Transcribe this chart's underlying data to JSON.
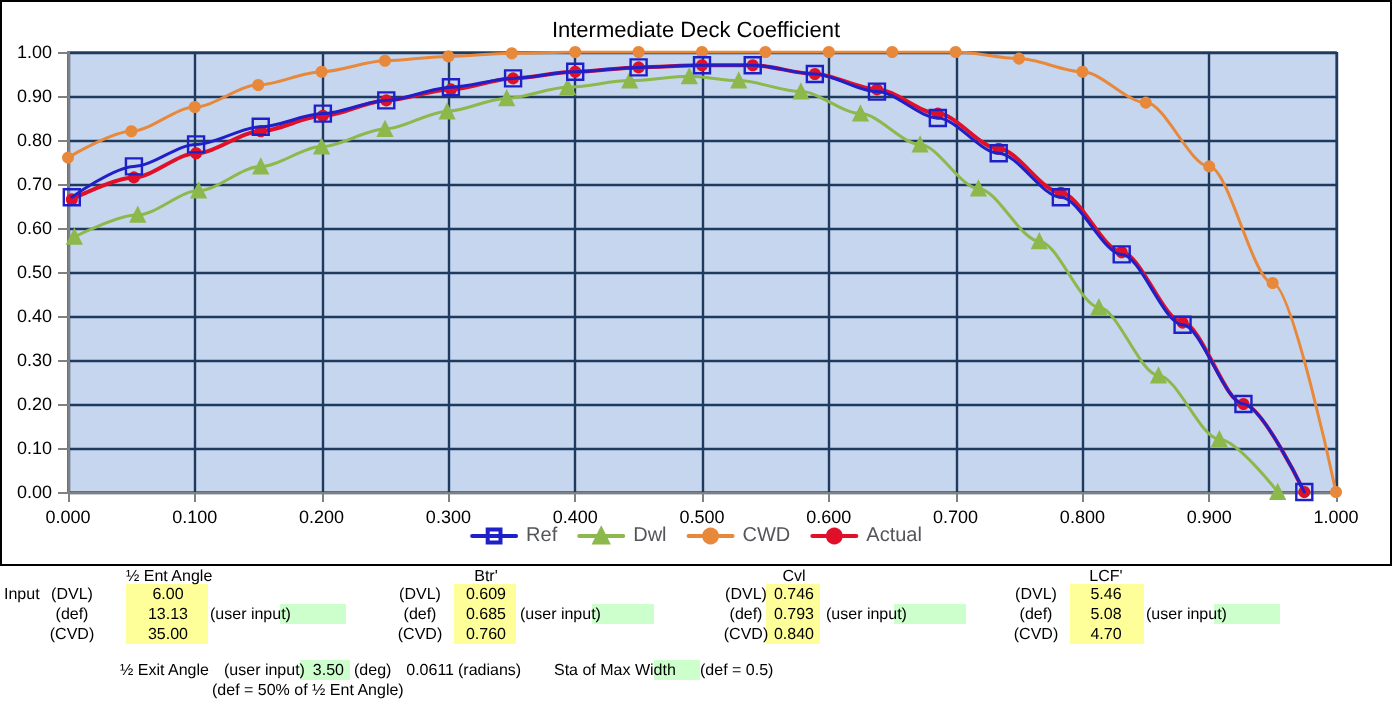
{
  "chart_data": {
    "type": "line",
    "title": "Intermediate Deck Coefficient",
    "xlim": [
      0,
      1
    ],
    "xticks": [
      {
        "value": 0,
        "label": "0.000"
      },
      {
        "value": 0.1,
        "label": "0.100"
      },
      {
        "value": 0.2,
        "label": "0.200"
      },
      {
        "value": 0.3,
        "label": "0.300"
      },
      {
        "value": 0.4,
        "label": "0.400"
      },
      {
        "value": 0.5,
        "label": "0.500"
      },
      {
        "value": 0.6,
        "label": "0.600"
      },
      {
        "value": 0.7,
        "label": "0.700"
      },
      {
        "value": 0.8,
        "label": "0.800"
      },
      {
        "value": 0.9,
        "label": "0.900"
      },
      {
        "value": 1,
        "label": "1.000"
      }
    ],
    "ylim": [
      0,
      1
    ],
    "yticks": [
      {
        "value": 0,
        "label": "0.00"
      },
      {
        "value": 0.1,
        "label": "0.10"
      },
      {
        "value": 0.2,
        "label": "0.20"
      },
      {
        "value": 0.3,
        "label": "0.30"
      },
      {
        "value": 0.4,
        "label": "0.40"
      },
      {
        "value": 0.5,
        "label": "0.50"
      },
      {
        "value": 0.6,
        "label": "0.60"
      },
      {
        "value": 0.7,
        "label": "0.70"
      },
      {
        "value": 0.8,
        "label": "0.80"
      },
      {
        "value": 0.9,
        "label": "0.90"
      },
      {
        "value": 1,
        "label": "1.00"
      }
    ],
    "grid": true,
    "legend": "bottom",
    "series": [
      {
        "name": "Ref",
        "color": "#2020c8",
        "marker": "square",
        "x": [
          0.003,
          0.052,
          0.101,
          0.152,
          0.201,
          0.251,
          0.302,
          0.351,
          0.4,
          0.45,
          0.5,
          0.54,
          0.589,
          0.638,
          0.686,
          0.734,
          0.783,
          0.831,
          0.879,
          0.927,
          0.975
        ],
        "values": [
          0.67,
          0.74,
          0.79,
          0.83,
          0.86,
          0.89,
          0.92,
          0.94,
          0.955,
          0.965,
          0.97,
          0.97,
          0.95,
          0.91,
          0.85,
          0.77,
          0.67,
          0.54,
          0.38,
          0.2,
          0.0
        ]
      },
      {
        "name": "Dwl",
        "color": "#8cb84c",
        "marker": "triangle",
        "x": [
          0.005,
          0.055,
          0.103,
          0.152,
          0.2,
          0.25,
          0.299,
          0.346,
          0.394,
          0.443,
          0.49,
          0.529,
          0.578,
          0.625,
          0.672,
          0.718,
          0.766,
          0.813,
          0.86,
          0.908,
          0.954
        ],
        "values": [
          0.58,
          0.63,
          0.685,
          0.74,
          0.785,
          0.825,
          0.865,
          0.895,
          0.92,
          0.935,
          0.945,
          0.935,
          0.91,
          0.86,
          0.79,
          0.69,
          0.57,
          0.42,
          0.265,
          0.12,
          0.0
        ]
      },
      {
        "name": "CWD",
        "color": "#e8883a",
        "marker": "circle",
        "x": [
          0,
          0.05,
          0.1,
          0.15,
          0.2,
          0.25,
          0.3,
          0.35,
          0.4,
          0.45,
          0.5,
          0.55,
          0.6,
          0.65,
          0.7,
          0.75,
          0.8,
          0.85,
          0.9,
          0.95,
          1.0
        ],
        "values": [
          0.76,
          0.82,
          0.875,
          0.925,
          0.955,
          0.98,
          0.99,
          0.997,
          1.0,
          1.0,
          1.0,
          1.0,
          1.0,
          1.0,
          1.0,
          0.985,
          0.955,
          0.885,
          0.74,
          0.475,
          0.0
        ]
      },
      {
        "name": "Actual",
        "color": "#e0102a",
        "marker": "circle",
        "x": [
          0.003,
          0.052,
          0.101,
          0.152,
          0.201,
          0.251,
          0.302,
          0.351,
          0.4,
          0.45,
          0.5,
          0.54,
          0.589,
          0.638,
          0.686,
          0.734,
          0.783,
          0.831,
          0.879,
          0.927,
          0.975
        ],
        "values": [
          0.665,
          0.715,
          0.77,
          0.82,
          0.855,
          0.89,
          0.915,
          0.94,
          0.955,
          0.965,
          0.97,
          0.97,
          0.95,
          0.915,
          0.86,
          0.78,
          0.68,
          0.545,
          0.385,
          0.2,
          0.0
        ]
      }
    ],
    "annotations": [
      "½ Ent Angle",
      "Btr'",
      "Cvl",
      "LCF'",
      "Input",
      "(DVL)",
      "6.00",
      "(DVL)",
      "0.609",
      "(DVL)",
      "0.746",
      "(DVL)",
      "5.46",
      "(def)",
      "13.13",
      "(user input)",
      "(def)",
      "0.685",
      "(user input)",
      "(def)",
      "0.793",
      "(user input)",
      "(def)",
      "5.08",
      "(user input)",
      "(CVD)",
      "35.00",
      "(CVD)",
      "0.760",
      "(CVD)",
      "0.840",
      "(CVD)",
      "4.70",
      "½ Exit Angle",
      "(user input)",
      "3.50",
      "(deg)",
      "0.0611",
      "(radians)",
      "Sta of Max Width",
      "(def = 0.5)",
      "(def = 50% of ½ Ent Angle)"
    ]
  }
}
